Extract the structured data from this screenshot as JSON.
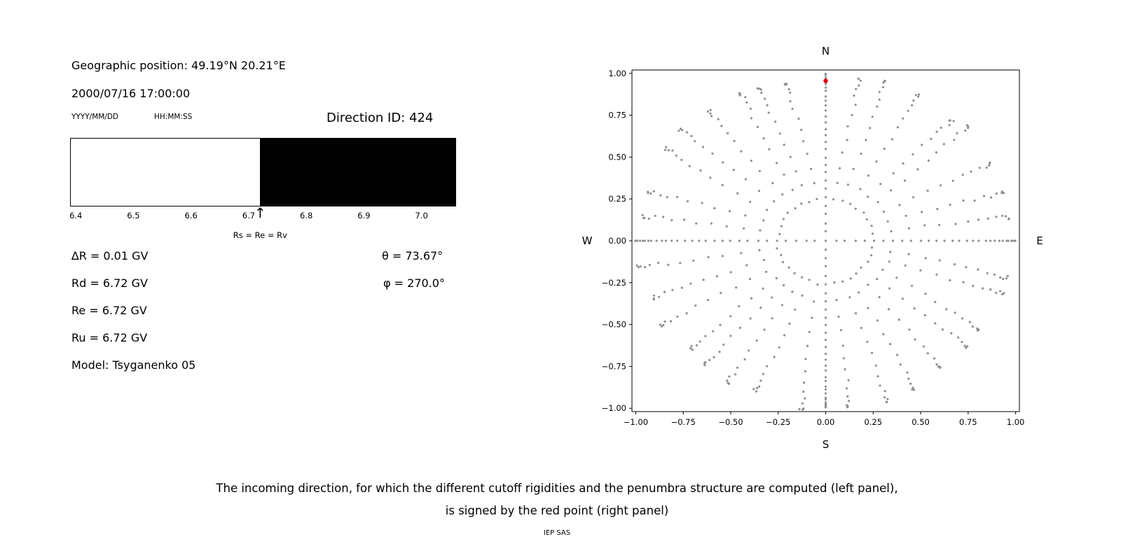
{
  "left_panel": {
    "geo_position": "Geographic position: 49.19°N 20.21°E",
    "datetime": "2000/07/16 17:00:00",
    "date_format_hint": "YYYY/MM/DD",
    "time_format_hint": "HH:MM:SS",
    "direction_id": "Direction ID: 424",
    "values": [
      "∆R = 0.01 GV",
      "Rd = 6.72 GV",
      "Re = 6.72 GV",
      "Ru = 6.72 GV",
      "Model: Tsyganenko 05"
    ],
    "theta": "θ = 73.67°",
    "phi": "φ = 270.0°"
  },
  "chart_data": [
    {
      "type": "bar",
      "title": "Penumbra structure along the rigidity axis (white below cutoff, black above)",
      "x_range": [
        6.39,
        7.06
      ],
      "xticks": [
        6.4,
        6.5,
        6.6,
        6.7,
        6.8,
        6.9,
        7.0
      ],
      "tick_labels": [
        "6.4",
        "6.5",
        "6.6",
        "6.7",
        "6.8",
        "6.9",
        "7.0"
      ],
      "segments": [
        {
          "id": "left-white",
          "from": 6.39,
          "to": 6.72,
          "color": "#ffffff"
        },
        {
          "id": "right-black",
          "from": 6.72,
          "to": 7.06,
          "color": "#000000"
        }
      ],
      "annotation": {
        "x": 6.72,
        "label": "Rs = Re = Rv",
        "arrow_glyph": "↑"
      }
    },
    {
      "type": "scatter",
      "title": "Incoming direction map",
      "xlim": [
        -1.02,
        1.02
      ],
      "ylim": [
        -1.02,
        1.02
      ],
      "xticks": [
        -1.0,
        -0.75,
        -0.5,
        -0.25,
        0.0,
        0.25,
        0.5,
        0.75,
        1.0
      ],
      "yticks": [
        -1.0,
        -0.75,
        -0.5,
        -0.25,
        0.0,
        0.25,
        0.5,
        0.75,
        1.0
      ],
      "compass": {
        "top": "N",
        "bottom": "S",
        "left": "W",
        "right": "E"
      },
      "grid": false,
      "dots": {
        "color": "#8f8f8f",
        "radius_map": "sin(zenith)",
        "azimuth_step_deg": 10,
        "zenith_start_deg": 15,
        "zenith_step_deg": 6,
        "zenith_end_deg": 90,
        "cardinal_zenith_start_deg": 3,
        "cardinal_zenith_step_deg": 3,
        "center_dot": true
      },
      "highlight_point": {
        "x": 0.0,
        "y": 0.955,
        "color": "#e00000"
      }
    }
  ],
  "caption": {
    "line1": "The incoming direction, for which the different cutoff rigidities and the penumbra structure are computed (left panel),",
    "line2": "is signed by the red point (right panel)"
  },
  "credit": "IEP SAS"
}
